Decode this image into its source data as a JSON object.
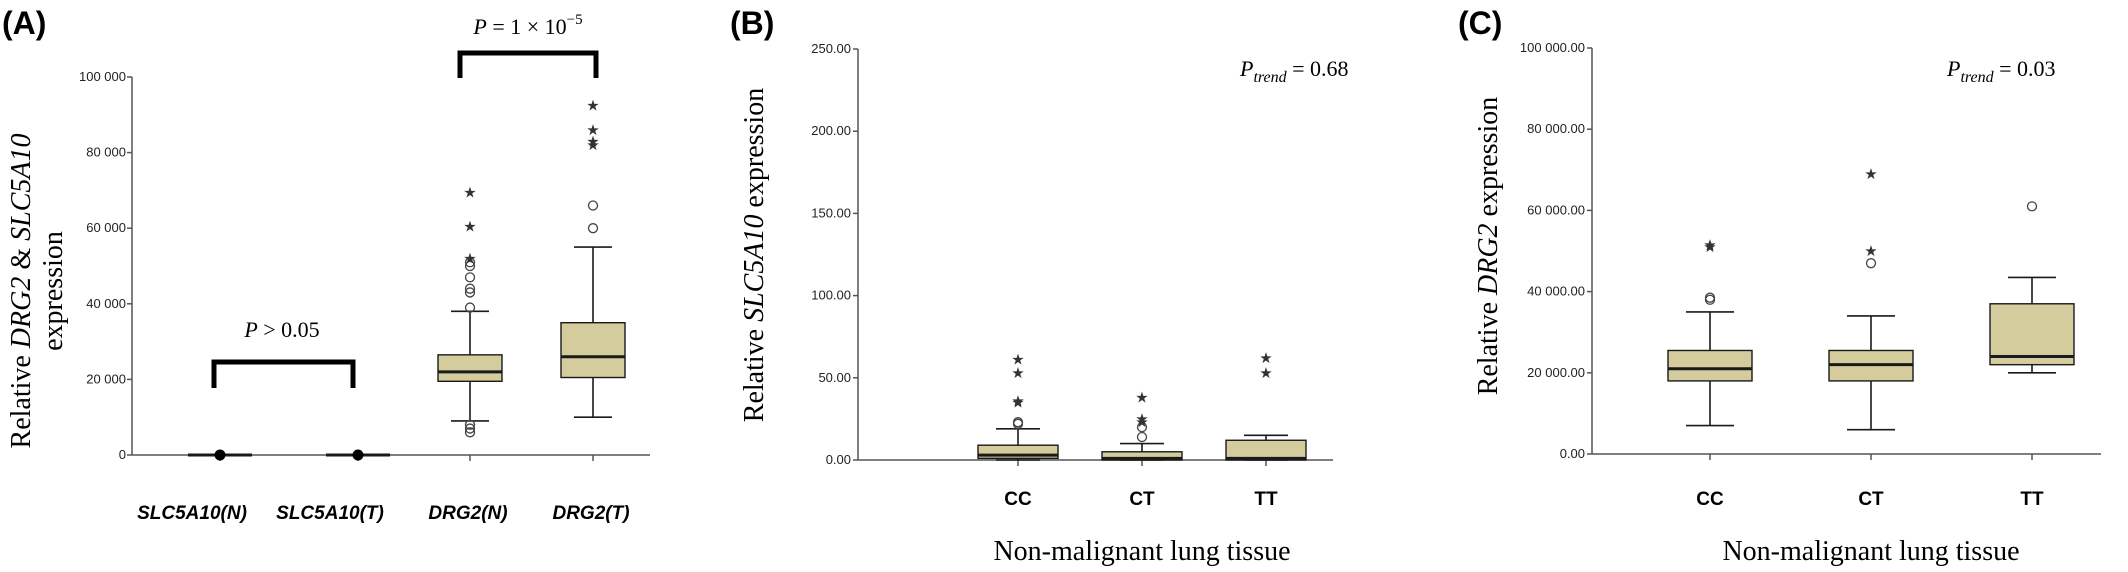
{
  "panels": [
    {
      "letter": "(A)"
    },
    {
      "letter": "(B)"
    },
    {
      "letter": "(C)"
    }
  ],
  "chart_data": [
    {
      "type": "box",
      "categories": [
        "SLC5A10(N)",
        "SLC5A10(T)",
        "DRG2(N)",
        "DRG2(T)"
      ],
      "ylabel_parts": [
        "Relative ",
        "DRG2",
        " & ",
        "SLC5A10",
        "expression"
      ],
      "ylim": [
        0,
        100000
      ],
      "ytick_labels": [
        "0",
        "20 000",
        "40 000",
        "60 000",
        "80 000",
        "100 000"
      ],
      "ytick_values": [
        0,
        20000,
        40000,
        60000,
        80000,
        100000
      ],
      "boxes": [
        {
          "category": "SLC5A10(N)",
          "min": 0,
          "q1": 0,
          "median": 0,
          "q3": 0,
          "max": 0,
          "outliers": [],
          "extremes": []
        },
        {
          "category": "SLC5A10(T)",
          "min": 0,
          "q1": 0,
          "median": 0,
          "q3": 0,
          "max": 0,
          "outliers": [],
          "extremes": []
        },
        {
          "category": "DRG2(N)",
          "min": 9000,
          "q1": 19500,
          "median": 22000,
          "q3": 26500,
          "max": 38000,
          "outliers": [
            6000,
            7000,
            8000,
            39000,
            43000,
            44000,
            47000,
            50000,
            51000
          ],
          "extremes": [
            52000,
            60500,
            69500
          ]
        },
        {
          "category": "DRG2(T)",
          "min": 10000,
          "q1": 20500,
          "median": 26000,
          "q3": 35000,
          "max": 55000,
          "outliers": [
            60000,
            66000
          ],
          "extremes": [
            82000,
            83000,
            86000,
            92500
          ]
        }
      ],
      "annotations": [
        {
          "text_parts": [
            "P",
            " > 0.05"
          ],
          "between": [
            "SLC5A10(N)",
            "SLC5A10(T)"
          ]
        },
        {
          "text_parts": [
            "P",
            " = 1 × 10",
            "−5"
          ],
          "between": [
            "DRG2(N)",
            "DRG2(T)"
          ]
        }
      ]
    },
    {
      "type": "box",
      "categories": [
        "CC",
        "CT",
        "TT"
      ],
      "xlabel": "Non-malignant lung tissue",
      "ylabel_parts": [
        "Relative ",
        "SLC5A10",
        " expression"
      ],
      "ylim": [
        0,
        250
      ],
      "ytick_labels": [
        "0.00",
        "50.00",
        "100.00",
        "150.00",
        "200.00",
        "250.00"
      ],
      "ytick_values": [
        0,
        50,
        100,
        150,
        200,
        250
      ],
      "boxes": [
        {
          "category": "CC",
          "min": 0,
          "q1": 1,
          "median": 3,
          "q3": 9,
          "max": 19,
          "outliers": [
            22,
            23
          ],
          "extremes": [
            35,
            36,
            53,
            61
          ]
        },
        {
          "category": "CT",
          "min": 0,
          "q1": 0,
          "median": 1,
          "q3": 5,
          "max": 10,
          "outliers": [
            14,
            20
          ],
          "extremes": [
            23,
            25,
            38
          ]
        },
        {
          "category": "TT",
          "min": 0,
          "q1": 0,
          "median": 1,
          "q3": 12,
          "max": 15,
          "outliers": [],
          "extremes": [
            53,
            62
          ]
        }
      ],
      "annotations": [
        {
          "text_parts": [
            "P",
            "trend",
            " = 0.68"
          ]
        }
      ]
    },
    {
      "type": "box",
      "categories": [
        "CC",
        "CT",
        "TT"
      ],
      "xlabel": "Non-malignant lung tissue",
      "ylabel_parts": [
        "Relative ",
        "DRG2",
        " expression"
      ],
      "ylim": [
        0,
        100000
      ],
      "ytick_labels": [
        "0.00",
        "20 000.00",
        "40 000.00",
        "60 000.00",
        "80 000.00",
        "100 000.00"
      ],
      "ytick_values": [
        0,
        20000,
        40000,
        60000,
        80000,
        100000
      ],
      "boxes": [
        {
          "category": "CC",
          "min": 7000,
          "q1": 18000,
          "median": 21000,
          "q3": 25500,
          "max": 35000,
          "outliers": [
            38000,
            38500
          ],
          "extremes": [
            51000,
            51500
          ]
        },
        {
          "category": "CT",
          "min": 6000,
          "q1": 18000,
          "median": 22000,
          "q3": 25500,
          "max": 34000,
          "outliers": [
            47000
          ],
          "extremes": [
            50000,
            69000
          ]
        },
        {
          "category": "TT",
          "min": 20000,
          "q1": 22000,
          "median": 24000,
          "q3": 37000,
          "max": 43500,
          "outliers": [
            61000
          ],
          "extremes": []
        }
      ],
      "annotations": [
        {
          "text_parts": [
            "P",
            "trend",
            " = 0.03"
          ]
        }
      ]
    }
  ],
  "colors": {
    "box_fill": "#d4cc9c",
    "box_stroke": "#1a1a1a",
    "axis": "#555555"
  }
}
